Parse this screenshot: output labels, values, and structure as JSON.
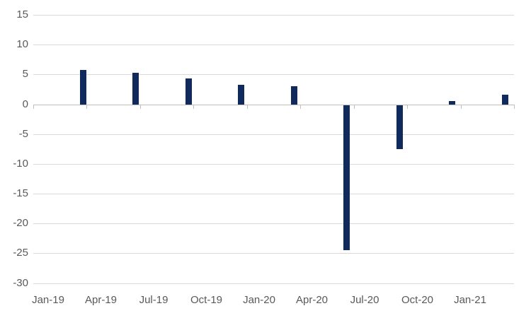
{
  "chart_data": {
    "type": "bar",
    "title": "",
    "xlabel": "",
    "ylabel": "",
    "legend": "none",
    "grid": true,
    "ylim": [
      -30,
      15
    ],
    "y_ticks": [
      15,
      10,
      5,
      0,
      -5,
      -10,
      -15,
      -20,
      -25,
      -30
    ],
    "y_tick_labels": [
      "15",
      "10",
      "5",
      "0",
      "-5",
      "-10",
      "-15",
      "-20",
      "-25",
      "-30"
    ],
    "x_tick_labels": [
      "Jan-19",
      "Apr-19",
      "Jul-19",
      "Oct-19",
      "Jan-20",
      "Apr-20",
      "Jul-20",
      "Oct-20",
      "Jan-21"
    ],
    "values": [
      5.8,
      5.3,
      4.4,
      3.3,
      3.0,
      -24.4,
      -7.4,
      0.5,
      1.6
    ],
    "layout_hints": {
      "bar_offset_fraction": 0.66,
      "note": "bars are plotted about two-thirds of a category width to the right of each x tick label (quarter-end dates on a date axis)",
      "legend_position": "none"
    },
    "colors": {
      "bar": "#102a5c",
      "gridline": "#d9d9d9",
      "axis_line": "#bfbfbf",
      "tick_label": "#595959",
      "background": "#ffffff"
    }
  }
}
